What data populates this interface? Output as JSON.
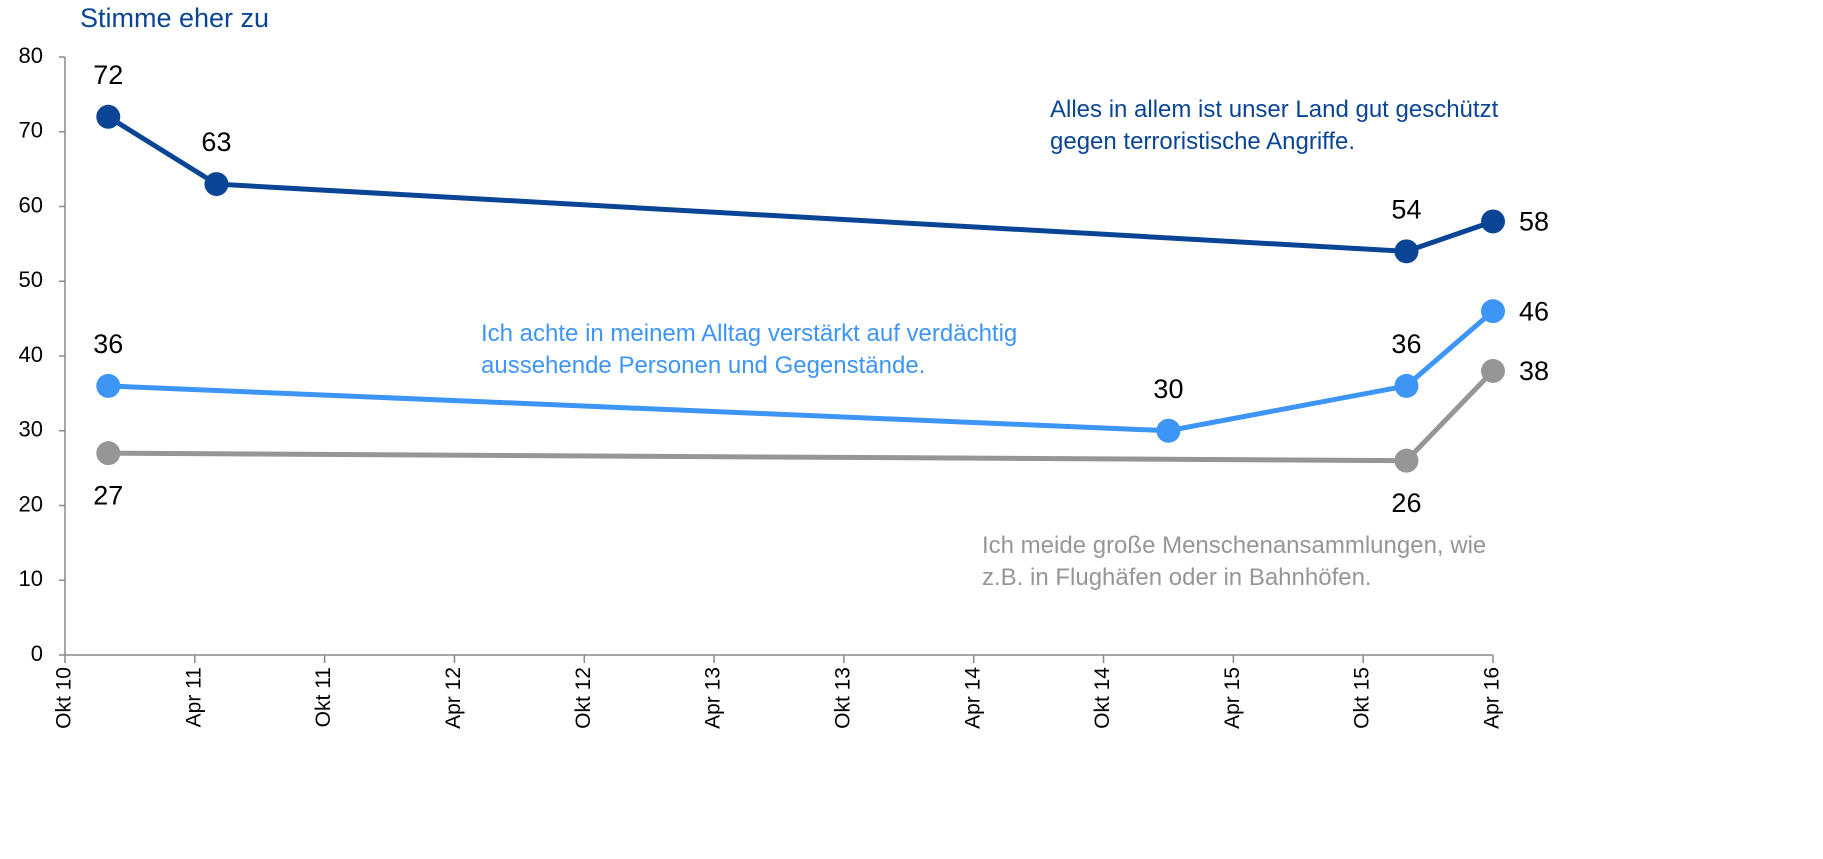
{
  "chart_data": {
    "type": "line",
    "title": "Stimme eher zu",
    "ylim": [
      0,
      80
    ],
    "yticks": [
      0,
      10,
      20,
      30,
      40,
      50,
      60,
      70,
      80
    ],
    "xlim": [
      "2010-10",
      "2016-04"
    ],
    "xticks": [
      {
        "value": "2010-10",
        "label": "Okt 10"
      },
      {
        "value": "2011-04",
        "label": "Apr 11"
      },
      {
        "value": "2011-10",
        "label": "Okt 11"
      },
      {
        "value": "2012-04",
        "label": "Apr 12"
      },
      {
        "value": "2012-10",
        "label": "Okt 12"
      },
      {
        "value": "2013-04",
        "label": "Apr 13"
      },
      {
        "value": "2013-10",
        "label": "Okt 13"
      },
      {
        "value": "2014-04",
        "label": "Apr 14"
      },
      {
        "value": "2014-10",
        "label": "Okt 14"
      },
      {
        "value": "2015-04",
        "label": "Apr 15"
      },
      {
        "value": "2015-10",
        "label": "Okt 15"
      },
      {
        "value": "2016-04",
        "label": "Apr 16"
      }
    ],
    "series": [
      {
        "name": "Alles in allem ist unser Land gut geschützt gegen terroristische Angriffe.",
        "color": "#0a4595",
        "x": [
          "2010-12",
          "2011-05",
          "2015-12",
          "2016-04"
        ],
        "values": [
          72,
          63,
          54,
          58
        ]
      },
      {
        "name": "Ich achte in meinem Alltag verstärkt auf verdächtig aussehende Personen und Gegenstände.",
        "color": "#3d95f5",
        "x": [
          "2010-12",
          "2015-01",
          "2015-12",
          "2016-04"
        ],
        "values": [
          36,
          30,
          36,
          46
        ]
      },
      {
        "name": "Ich meide große Menschenansammlungen, wie z.B. in Flughäfen oder in Bahnhöfen.",
        "color": "#969696",
        "x": [
          "2010-12",
          "2015-12",
          "2016-04"
        ],
        "values": [
          27,
          26,
          38
        ]
      }
    ]
  }
}
